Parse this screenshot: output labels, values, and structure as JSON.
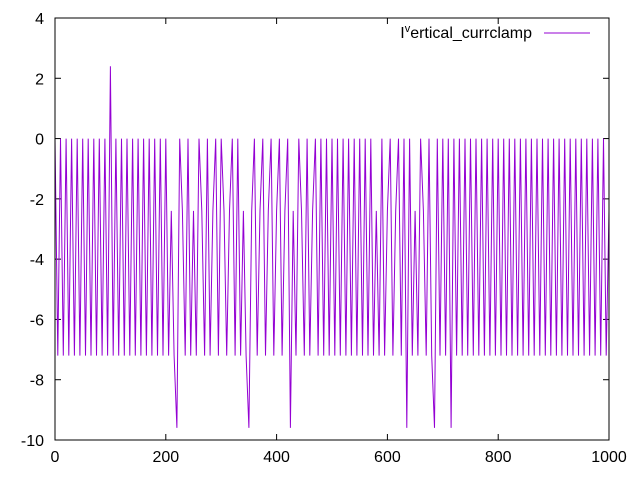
{
  "chart_data": {
    "type": "line",
    "title": "",
    "xlabel": "",
    "ylabel": "",
    "xlim": [
      0,
      1000
    ],
    "ylim": [
      -10,
      4
    ],
    "xticks": [
      0,
      200,
      400,
      600,
      800,
      1000
    ],
    "yticks": [
      -10,
      -8,
      -6,
      -4,
      -2,
      0,
      2,
      4
    ],
    "grid": false,
    "legend_position": "top-right",
    "x_step": 5,
    "series": [
      {
        "name_parts": {
          "base": "I",
          "sup": "v",
          "rest": "ertical_currclamp"
        },
        "color": "#9400d3",
        "y": [
          0,
          -7.2,
          0,
          -7.2,
          0,
          -7.2,
          0,
          -7.2,
          0,
          -7.2,
          0,
          -7.2,
          0,
          -7.2,
          0,
          -7.2,
          0,
          -7.2,
          0,
          -7.2,
          2.4,
          -7.2,
          0,
          -7.2,
          0,
          -7.2,
          0,
          -7.2,
          0,
          -7.2,
          0,
          -7.2,
          0,
          -7.2,
          0,
          -7.2,
          0,
          -7.2,
          0,
          -7.2,
          0,
          -7.2,
          -2.4,
          -7.2,
          -9.6,
          0,
          -2.4,
          -7.2,
          0,
          -7.2,
          -2.4,
          -7.2,
          0,
          -2.4,
          -7.2,
          0,
          -7.2,
          -2.4,
          0,
          -7.2,
          0,
          -2.4,
          -7.2,
          -2.4,
          0,
          -7.2,
          0,
          -7.2,
          -2.4,
          -7.2,
          -9.6,
          -2.4,
          0,
          -7.2,
          -2.4,
          0,
          -7.2,
          -2.4,
          0,
          -7.2,
          -2.4,
          0,
          -7.2,
          -2.4,
          0,
          -9.6,
          -2.4,
          -7.2,
          0,
          -2.4,
          -7.2,
          0,
          -7.2,
          -2.4,
          0,
          -7.2,
          0,
          -7.2,
          0,
          -7.2,
          0,
          -7.2,
          0,
          -7.2,
          0,
          -7.2,
          0,
          -7.2,
          0,
          -7.2,
          0,
          -7.2,
          0,
          -7.2,
          0,
          -7.2,
          -2.4,
          -7.2,
          0,
          -7.2,
          -2.4,
          0,
          -7.2,
          -2.4,
          0,
          -7.2,
          0,
          -9.6,
          0,
          -7.2,
          -2.4,
          -7.2,
          0,
          -2.4,
          -7.2,
          0,
          -7.2,
          -9.6,
          0,
          -7.2,
          0,
          -7.2,
          0,
          -9.6,
          0,
          -7.2,
          0,
          -7.2,
          0,
          -7.2,
          0,
          -7.2,
          0,
          -7.2,
          0,
          -7.2,
          0,
          -7.2,
          0,
          -7.2,
          0,
          -7.2,
          0,
          -7.2,
          0,
          -7.2,
          0,
          -7.2,
          0,
          -7.2,
          0,
          -7.2,
          0,
          -7.2,
          0,
          -7.2,
          0,
          -7.2,
          0,
          -7.2,
          0,
          -7.2,
          0,
          -7.2,
          0,
          -7.2,
          0,
          -7.2,
          0,
          -7.2,
          0,
          -7.2,
          0,
          -7.2,
          0,
          -7.2,
          0,
          -7.2,
          0,
          -7.2,
          -2.4
        ]
      }
    ]
  }
}
